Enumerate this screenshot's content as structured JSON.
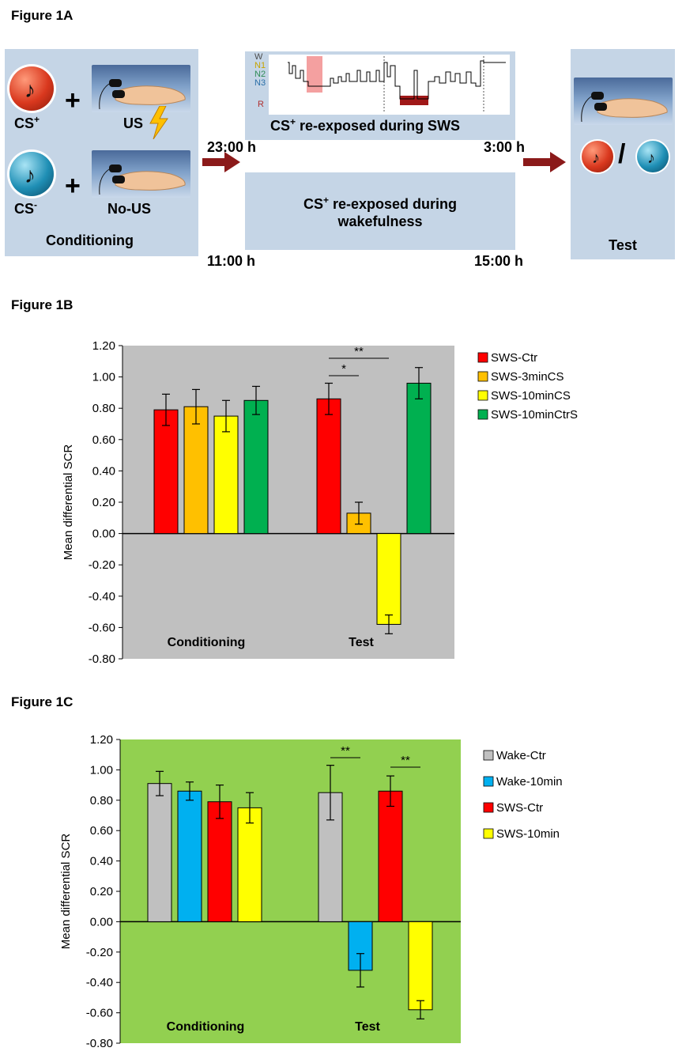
{
  "figure1a": {
    "title": "Figure 1A",
    "conditioning": {
      "cs_plus": "CS",
      "cs_plus_sup": "+",
      "cs_minus": "CS",
      "cs_minus_sup": "-",
      "us": "US",
      "no_us": "No-US",
      "plus_sign": "+",
      "caption": "Conditioning"
    },
    "hypnogram_stages": [
      "W",
      "N1",
      "N2",
      "N3",
      "R"
    ],
    "sws_text_pre": "CS",
    "sws_text_sup": "+",
    "sws_text_post": " re-exposed during SWS",
    "wake_text_pre": "CS",
    "wake_text_sup": "+",
    "wake_text_post": " re-exposed during",
    "wake_text_line2": "wakefulness",
    "time_sws_start": "23:00 h",
    "time_sws_end": "3:00 h",
    "time_wake_start": "11:00 h",
    "time_wake_end": "15:00 h",
    "test_caption": "Test",
    "slash": "/",
    "colors": {
      "panel": "#c5d5e6",
      "arrow": "#8b1a1a",
      "cs_plus": "#d9381e",
      "cs_minus": "#1f8fb5"
    }
  },
  "figure1b": {
    "title": "Figure 1B",
    "chart_data": {
      "type": "bar",
      "ylabel": "Mean differential SCR",
      "ylim": [
        -0.8,
        1.2
      ],
      "yticks": [
        "1.20",
        "1.00",
        "0.80",
        "0.60",
        "0.40",
        "0.20",
        "0.00",
        "-0.20",
        "-0.40",
        "-0.60",
        "-0.80"
      ],
      "groups": [
        "Conditioning",
        "Test"
      ],
      "background": "#c0c0c0",
      "legend_position": "right",
      "series": [
        {
          "name": "SWS-Ctr",
          "color": "#ff0000",
          "values": [
            0.79,
            0.86
          ],
          "errors": [
            0.1,
            0.1
          ]
        },
        {
          "name": "SWS-3minCS",
          "color": "#ffc000",
          "values": [
            0.81,
            0.13
          ],
          "errors": [
            0.11,
            0.07
          ]
        },
        {
          "name": "SWS-10minCS",
          "color": "#ffff00",
          "values": [
            0.75,
            -0.58
          ],
          "errors": [
            0.1,
            0.06
          ]
        },
        {
          "name": "SWS-10minCtrS",
          "color": "#00b050",
          "values": [
            0.85,
            0.96
          ],
          "errors": [
            0.09,
            0.1
          ]
        }
      ],
      "annotations": [
        {
          "label": "**",
          "from_series": 0,
          "to_series": 2,
          "group": 1
        },
        {
          "label": "*",
          "from_series": 0,
          "to_series": 1,
          "group": 1
        }
      ]
    }
  },
  "figure1c": {
    "title": "Figure 1C",
    "chart_data": {
      "type": "bar",
      "ylabel": "Mean differential SCR",
      "ylim": [
        -0.8,
        1.2
      ],
      "yticks": [
        "1.20",
        "1.00",
        "0.80",
        "0.60",
        "0.40",
        "0.20",
        "0.00",
        "-0.20",
        "-0.40",
        "-0.60",
        "-0.80"
      ],
      "groups": [
        "Conditioning",
        "Test"
      ],
      "background": "#92d050",
      "legend_position": "right",
      "series": [
        {
          "name": "Wake-Ctr",
          "color": "#c0c0c0",
          "values": [
            0.91,
            0.85
          ],
          "errors": [
            0.08,
            0.18
          ]
        },
        {
          "name": "Wake-10min",
          "color": "#00b0f0",
          "values": [
            0.86,
            -0.32
          ],
          "errors": [
            0.06,
            0.11
          ]
        },
        {
          "name": "SWS-Ctr",
          "color": "#ff0000",
          "values": [
            0.79,
            0.86
          ],
          "errors": [
            0.11,
            0.1
          ]
        },
        {
          "name": "SWS-10min",
          "color": "#ffff00",
          "values": [
            0.75,
            -0.58
          ],
          "errors": [
            0.1,
            0.06
          ]
        }
      ],
      "annotations": [
        {
          "label": "**",
          "from_series": 0,
          "to_series": 1,
          "group": 1
        },
        {
          "label": "**",
          "from_series": 2,
          "to_series": 3,
          "group": 1
        }
      ]
    }
  }
}
